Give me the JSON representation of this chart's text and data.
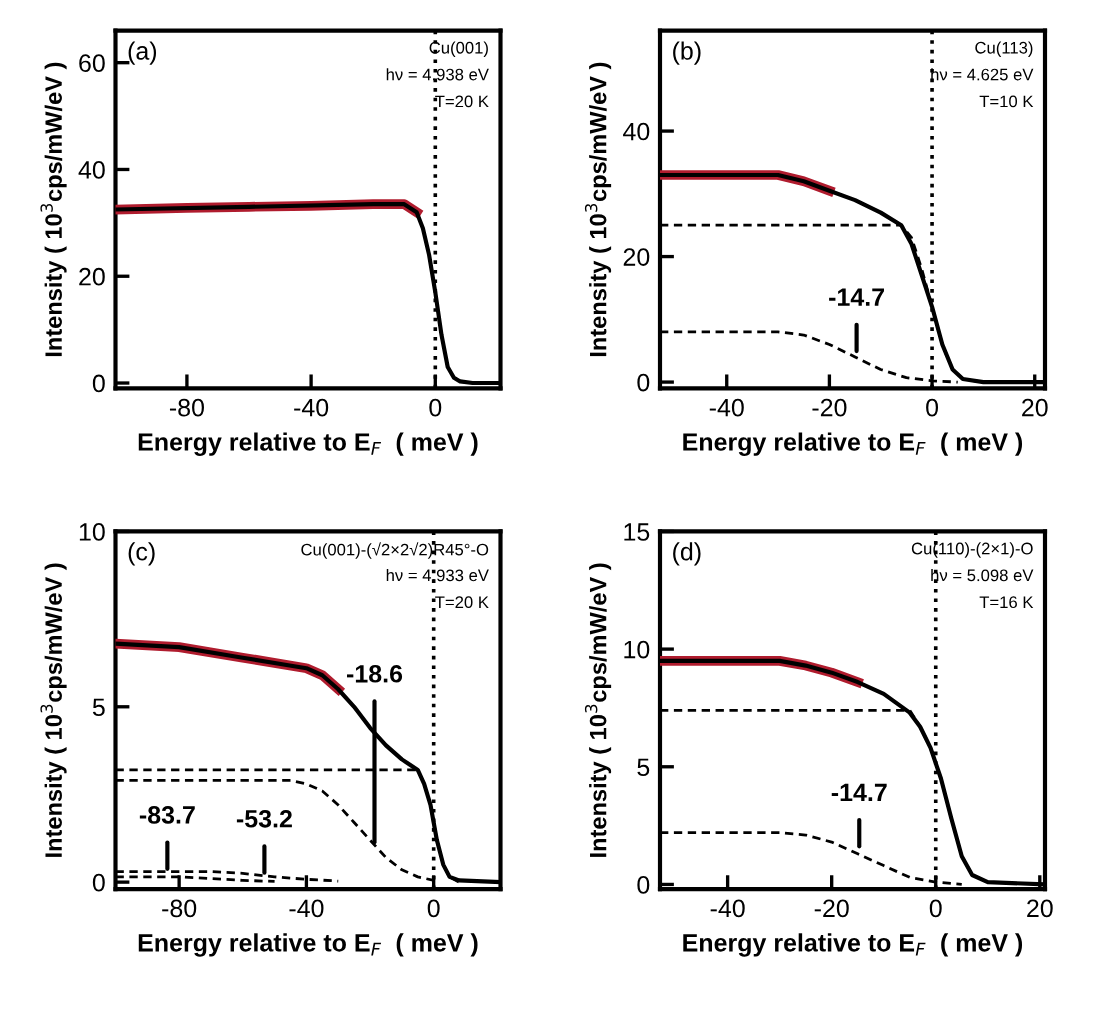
{
  "chart_data": [
    {
      "type": "line",
      "xlabel": "Energy relative to E$_{F}$  ( meV )",
      "ylabel": "Intensity ( 10$^{3}$cps/mW/eV )",
      "xlim": [
        -103,
        21
      ],
      "ylim": [
        -1,
        66
      ],
      "xticks": [
        -80,
        -40,
        0
      ],
      "yticks": [
        0,
        20,
        40,
        60
      ],
      "grid": false,
      "legend": false,
      "ref_lines": [
        {
          "axis": "x",
          "value": 0,
          "line_style": "dotted",
          "color": "#000000"
        }
      ],
      "annotations": [
        "(a)",
        "Cu(001)",
        "hν = 4.938 eV",
        "T=20 K"
      ],
      "series": [
        {
          "color": "#b01c2e",
          "line_style": "solid",
          "x": [
            -103,
            -80,
            -60,
            -40,
            -20,
            -10,
            -6
          ],
          "values": [
            32.5,
            32.8,
            33,
            33.2,
            33.5,
            33.5,
            32
          ]
        },
        {
          "color": "#000000",
          "line_style": "solid",
          "x": [
            -103,
            -60,
            -20,
            -10,
            -6,
            -4,
            -2,
            0,
            2,
            4,
            6,
            8,
            12,
            21
          ],
          "values": [
            32.5,
            33,
            33.5,
            33.5,
            32,
            29,
            24,
            17,
            9,
            3,
            1,
            0.3,
            0,
            0
          ]
        }
      ]
    },
    {
      "type": "line",
      "xlabel": "Energy relative to E$_{F}$  ( meV )",
      "ylabel": "Intensity ( 10$^{3}$cps/mW/eV )",
      "xlim": [
        -53,
        22
      ],
      "ylim": [
        -1,
        56
      ],
      "xticks": [
        -40,
        -20,
        0,
        20
      ],
      "yticks": [
        0,
        20,
        40
      ],
      "grid": false,
      "legend": false,
      "ref_lines": [
        {
          "axis": "x",
          "value": 0,
          "line_style": "dotted",
          "color": "#000000"
        }
      ],
      "annotations": [
        "(b)",
        "Cu(113)",
        "hν = 4.625 eV",
        "T=10 K",
        {
          "text": "-14.7",
          "x": -14.7,
          "y": 4.5
        }
      ],
      "series": [
        {
          "color": "#b01c2e",
          "line_style": "solid",
          "x": [
            -53,
            -40,
            -30,
            -25,
            -20
          ],
          "values": [
            33,
            33,
            33,
            32,
            30.5
          ]
        },
        {
          "color": "#000000",
          "line_style": "solid",
          "x": [
            -53,
            -40,
            -30,
            -25,
            -20,
            -15,
            -10,
            -6,
            -4,
            -2,
            0,
            2,
            4,
            6,
            10,
            22
          ],
          "values": [
            33,
            33,
            33,
            32,
            30.5,
            29,
            27,
            25,
            22,
            17,
            12,
            6,
            2,
            0.5,
            0,
            0
          ]
        },
        {
          "color": "#000000",
          "line_style": "dashed",
          "x": [
            -53,
            -6,
            -4,
            -2,
            0,
            2,
            4,
            6,
            10
          ],
          "values": [
            25,
            25,
            23,
            18,
            12,
            6,
            2,
            0.5,
            0
          ]
        },
        {
          "color": "#000000",
          "line_style": "dashed",
          "x": [
            -53,
            -30,
            -25,
            -20,
            -15,
            -10,
            -5,
            0,
            5
          ],
          "values": [
            8,
            8,
            7.5,
            6,
            4,
            2,
            0.7,
            0.2,
            0
          ]
        }
      ]
    },
    {
      "type": "line",
      "xlabel": "Energy relative to E$_{F}$  ( meV )",
      "ylabel": "Intensity ( 10$^{3}$cps/mW/eV )",
      "xlim": [
        -100,
        21
      ],
      "ylim": [
        -0.2,
        10
      ],
      "xticks": [
        -80,
        -40,
        0
      ],
      "yticks": [
        0,
        5,
        10
      ],
      "grid": false,
      "legend": false,
      "ref_lines": [
        {
          "axis": "x",
          "value": 0,
          "line_style": "dotted",
          "color": "#000000"
        }
      ],
      "annotations": [
        "(c)",
        "Cu(001)-(√2×2√2)R45°-O",
        "hν = 4.933 eV",
        "T=20 K",
        {
          "text": "-18.6",
          "x": -18.6,
          "y": 1.06
        },
        {
          "text": "-83.7",
          "x": -83.7,
          "y": 0.3
        },
        {
          "text": "-53.2",
          "x": -53.2,
          "y": 0.19
        }
      ],
      "series": [
        {
          "color": "#b01c2e",
          "line_style": "solid",
          "x": [
            -100,
            -80,
            -60,
            -40,
            -35,
            -30
          ],
          "values": [
            6.8,
            6.7,
            6.4,
            6.1,
            5.9,
            5.5
          ]
        },
        {
          "color": "#000000",
          "line_style": "solid",
          "x": [
            -100,
            -80,
            -60,
            -40,
            -35,
            -30,
            -25,
            -20,
            -15,
            -10,
            -5,
            -3,
            -1,
            1,
            3,
            5,
            8,
            21
          ],
          "values": [
            6.8,
            6.7,
            6.4,
            6.1,
            5.9,
            5.5,
            5.0,
            4.4,
            3.9,
            3.5,
            3.2,
            2.8,
            2.2,
            1.2,
            0.5,
            0.15,
            0.05,
            0
          ]
        },
        {
          "color": "#000000",
          "line_style": "dashed",
          "x": [
            -100,
            -5,
            -3,
            -1,
            1,
            3,
            5,
            8
          ],
          "values": [
            3.2,
            3.2,
            2.8,
            2.2,
            1.2,
            0.5,
            0.15,
            0
          ]
        },
        {
          "color": "#000000",
          "line_style": "dashed",
          "x": [
            -100,
            -45,
            -40,
            -35,
            -30,
            -25,
            -20,
            -15,
            -10,
            -5,
            0
          ],
          "values": [
            2.9,
            2.9,
            2.8,
            2.6,
            2.2,
            1.7,
            1.2,
            0.7,
            0.35,
            0.15,
            0.05
          ]
        },
        {
          "color": "#000000",
          "line_style": "dashed",
          "x": [
            -100,
            -70,
            -60,
            -50,
            -40,
            -30
          ],
          "values": [
            0.3,
            0.3,
            0.25,
            0.15,
            0.08,
            0.03
          ]
        },
        {
          "color": "#000000",
          "line_style": "dashed",
          "x": [
            -100,
            -80,
            -70,
            -60,
            -50
          ],
          "values": [
            0.15,
            0.15,
            0.1,
            0.05,
            0.02
          ]
        }
      ]
    },
    {
      "type": "line",
      "xlabel": "Energy relative to E$_{F}$  ( meV )",
      "ylabel": "Intensity ( 10$^{3}$cps/mW/eV )",
      "xlim": [
        -53,
        21
      ],
      "ylim": [
        -0.2,
        15
      ],
      "xticks": [
        -40,
        -20,
        0,
        20
      ],
      "yticks": [
        0,
        5,
        10,
        15
      ],
      "grid": false,
      "legend": false,
      "ref_lines": [
        {
          "axis": "x",
          "value": 0,
          "line_style": "dotted",
          "color": "#000000"
        }
      ],
      "annotations": [
        "(d)",
        "Cu(110)-(2×1)-O",
        "hν = 5.098 eV",
        "T=16 K",
        {
          "text": "-14.7",
          "x": -14.7,
          "y": 1.5
        }
      ],
      "series": [
        {
          "color": "#b01c2e",
          "line_style": "solid",
          "x": [
            -53,
            -30,
            -25,
            -20,
            -15
          ],
          "values": [
            9.5,
            9.5,
            9.3,
            9.0,
            8.6
          ]
        },
        {
          "color": "#000000",
          "line_style": "solid",
          "x": [
            -53,
            -30,
            -25,
            -20,
            -15,
            -10,
            -5,
            -3,
            -1,
            1,
            3,
            5,
            7,
            10,
            21
          ],
          "values": [
            9.5,
            9.5,
            9.3,
            9.0,
            8.6,
            8.1,
            7.3,
            6.7,
            5.8,
            4.5,
            2.8,
            1.2,
            0.4,
            0.1,
            0
          ]
        },
        {
          "color": "#000000",
          "line_style": "dashed",
          "x": [
            -53,
            -5,
            -3,
            -1,
            1,
            3,
            5,
            7,
            10
          ],
          "values": [
            7.4,
            7.4,
            6.7,
            5.8,
            4.5,
            2.8,
            1.2,
            0.4,
            0.1
          ]
        },
        {
          "color": "#000000",
          "line_style": "dashed",
          "x": [
            -53,
            -30,
            -25,
            -20,
            -15,
            -10,
            -5,
            0,
            5
          ],
          "values": [
            2.2,
            2.2,
            2.1,
            1.8,
            1.3,
            0.8,
            0.3,
            0.1,
            0
          ]
        }
      ]
    }
  ]
}
